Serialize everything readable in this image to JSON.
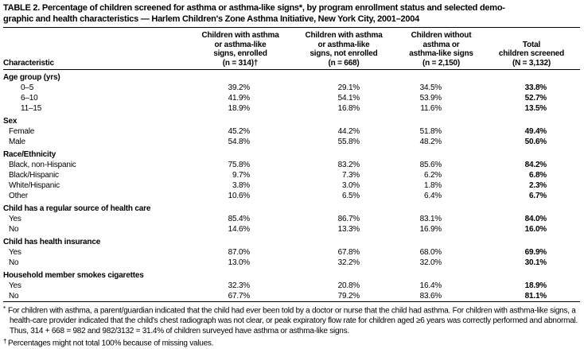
{
  "title": {
    "lines": [
      "TABLE 2. Percentage of children screened for asthma or asthma-like signs*, by program enrollment status and selected demo-",
      "graphic and health characteristics — Harlem Children's Zone Asthma Initiative, New York City, 2001–2004"
    ]
  },
  "table": {
    "col_headers": {
      "characteristic": "Characteristic",
      "enrolled": [
        "Children with asthma",
        "or asthma-like",
        "signs, enrolled",
        "(n = 314)†"
      ],
      "not_enrolled": [
        "Children with asthma",
        "or asthma-like",
        "signs, not enrolled",
        "(n = 668)"
      ],
      "without": [
        "Children without",
        "asthma or",
        "asthma-like signs",
        "(n = 2,150)"
      ],
      "total": [
        "Total",
        "children screened",
        "(N = 3,132)"
      ]
    },
    "rows": [
      {
        "type": "section",
        "label": "Age group (yrs)"
      },
      {
        "type": "data",
        "indent": 2,
        "label": "0–5",
        "values": [
          "39.2%",
          "29.1%",
          "34.5%",
          "33.8%"
        ]
      },
      {
        "type": "data",
        "indent": 2,
        "label": "6–10",
        "values": [
          "41.9%",
          "54.1%",
          "53.9%",
          "52.7%"
        ]
      },
      {
        "type": "data",
        "indent": 2,
        "label": "11–15",
        "values": [
          "18.9%",
          "16.8%",
          "11.6%",
          "13.5%"
        ]
      },
      {
        "type": "section",
        "label": "Sex"
      },
      {
        "type": "data",
        "indent": 1,
        "label": "Female",
        "values": [
          "45.2%",
          "44.2%",
          "51.8%",
          "49.4%"
        ]
      },
      {
        "type": "data",
        "indent": 1,
        "label": "Male",
        "values": [
          "54.8%",
          "55.8%",
          "48.2%",
          "50.6%"
        ]
      },
      {
        "type": "section",
        "label": "Race/Ethnicity"
      },
      {
        "type": "data",
        "indent": 1,
        "label": "Black, non-Hispanic",
        "values": [
          "75.8%",
          "83.2%",
          "85.6%",
          "84.2%"
        ]
      },
      {
        "type": "data",
        "indent": 1,
        "label": "Black/Hispanic",
        "values": [
          "9.7%",
          "7.3%",
          "6.2%",
          "6.8%"
        ]
      },
      {
        "type": "data",
        "indent": 1,
        "label": "White/Hispanic",
        "values": [
          "3.8%",
          "3.0%",
          "1.8%",
          "2.3%"
        ]
      },
      {
        "type": "data",
        "indent": 1,
        "label": "Other",
        "values": [
          "10.6%",
          "6.5%",
          "6.4%",
          "6.7%"
        ]
      },
      {
        "type": "section",
        "label": "Child has a regular source of health care"
      },
      {
        "type": "data",
        "indent": 1,
        "label": "Yes",
        "values": [
          "85.4%",
          "86.7%",
          "83.1%",
          "84.0%"
        ]
      },
      {
        "type": "data",
        "indent": 1,
        "label": "No",
        "values": [
          "14.6%",
          "13.3%",
          "16.9%",
          "16.0%"
        ]
      },
      {
        "type": "section",
        "label": "Child has health insurance"
      },
      {
        "type": "data",
        "indent": 1,
        "label": "Yes",
        "values": [
          "87.0%",
          "67.8%",
          "68.0%",
          "69.9%"
        ]
      },
      {
        "type": "data",
        "indent": 1,
        "label": "No",
        "values": [
          "13.0%",
          "32.2%",
          "32.0%",
          "30.1%"
        ]
      },
      {
        "type": "section",
        "label": "Household member smokes cigarettes"
      },
      {
        "type": "data",
        "indent": 1,
        "label": "Yes",
        "values": [
          "32.3%",
          "20.8%",
          "16.4%",
          "18.9%"
        ]
      },
      {
        "type": "data",
        "indent": 1,
        "label": "No",
        "values": [
          "67.7%",
          "79.2%",
          "83.6%",
          "81.1%"
        ]
      }
    ]
  },
  "footnotes": [
    {
      "marker": "*",
      "text": "For children with asthma, a parent/guardian indicated that the child had ever been told by a doctor or nurse that the child had asthma. For children with asthma-like signs, a health-care provider indicated that the child's chest radiograph was not clear, or peak expiratory flow rate for children aged ≥6 years was correctly performed and abnormal. Thus, 314 + 668 = 982 and 982/3132 = 31.4% of children surveyed have asthma or asthma-like signs."
    },
    {
      "marker": "†",
      "text": "Percentages might not total 100% because of missing values."
    }
  ]
}
